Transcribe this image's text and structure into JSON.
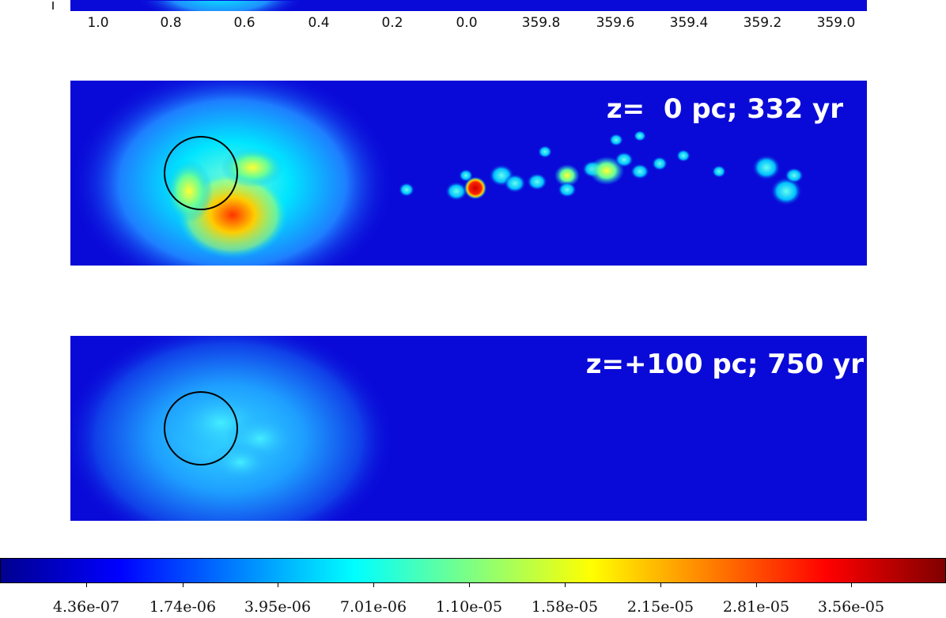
{
  "chart_data": {
    "type": "heatmap",
    "panels": [
      {
        "label": "z=  0 pc; 332 yr",
        "z_pc": 0,
        "time_yr": 332
      },
      {
        "label": "z=+100 pc; 750 yr",
        "z_pc": 100,
        "time_yr": 750
      }
    ],
    "xaxis": {
      "ticks": [
        "1.0",
        "0.8",
        "0.6",
        "0.4",
        "0.2",
        "0.0",
        "359.8",
        "359.6",
        "359.4",
        "359.2",
        "359.0"
      ]
    },
    "colorbar": {
      "tick_labels": [
        "4.36e-07",
        "1.74e-06",
        "3.95e-06",
        "7.01e-06",
        "1.10e-05",
        "1.58e-05",
        "2.15e-05",
        "2.81e-05",
        "3.56e-05"
      ],
      "colors": [
        "#00008f",
        "#0000ff",
        "#0080ff",
        "#00ffff",
        "#80ff80",
        "#ffff00",
        "#ff8000",
        "#ff0000",
        "#800000"
      ]
    }
  }
}
